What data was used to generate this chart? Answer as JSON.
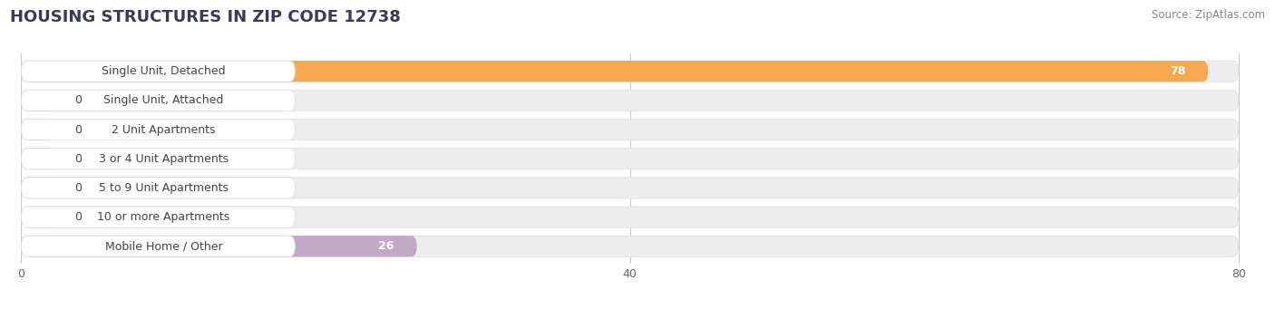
{
  "title": "HOUSING STRUCTURES IN ZIP CODE 12738",
  "source": "Source: ZipAtlas.com",
  "categories": [
    "Single Unit, Detached",
    "Single Unit, Attached",
    "2 Unit Apartments",
    "3 or 4 Unit Apartments",
    "5 to 9 Unit Apartments",
    "10 or more Apartments",
    "Mobile Home / Other"
  ],
  "values": [
    78,
    0,
    0,
    0,
    0,
    0,
    26
  ],
  "bar_colors": [
    "#F5A84E",
    "#F4A0A0",
    "#A8C4E0",
    "#A8C4E0",
    "#A8C4E0",
    "#A8C4E0",
    "#C4A8C8"
  ],
  "row_bg_color": "#EDEDED",
  "label_bg_color": "#FFFFFF",
  "xlim_data": [
    0,
    80
  ],
  "xticks": [
    0,
    40,
    80
  ],
  "title_fontsize": 13,
  "label_fontsize": 9,
  "value_fontsize": 9,
  "source_fontsize": 8.5,
  "bar_height": 0.72,
  "background_color": "#FFFFFF",
  "grid_color": "#CCCCCC",
  "text_color": "#444444",
  "source_color": "#888888",
  "title_color": "#3A3A5A"
}
